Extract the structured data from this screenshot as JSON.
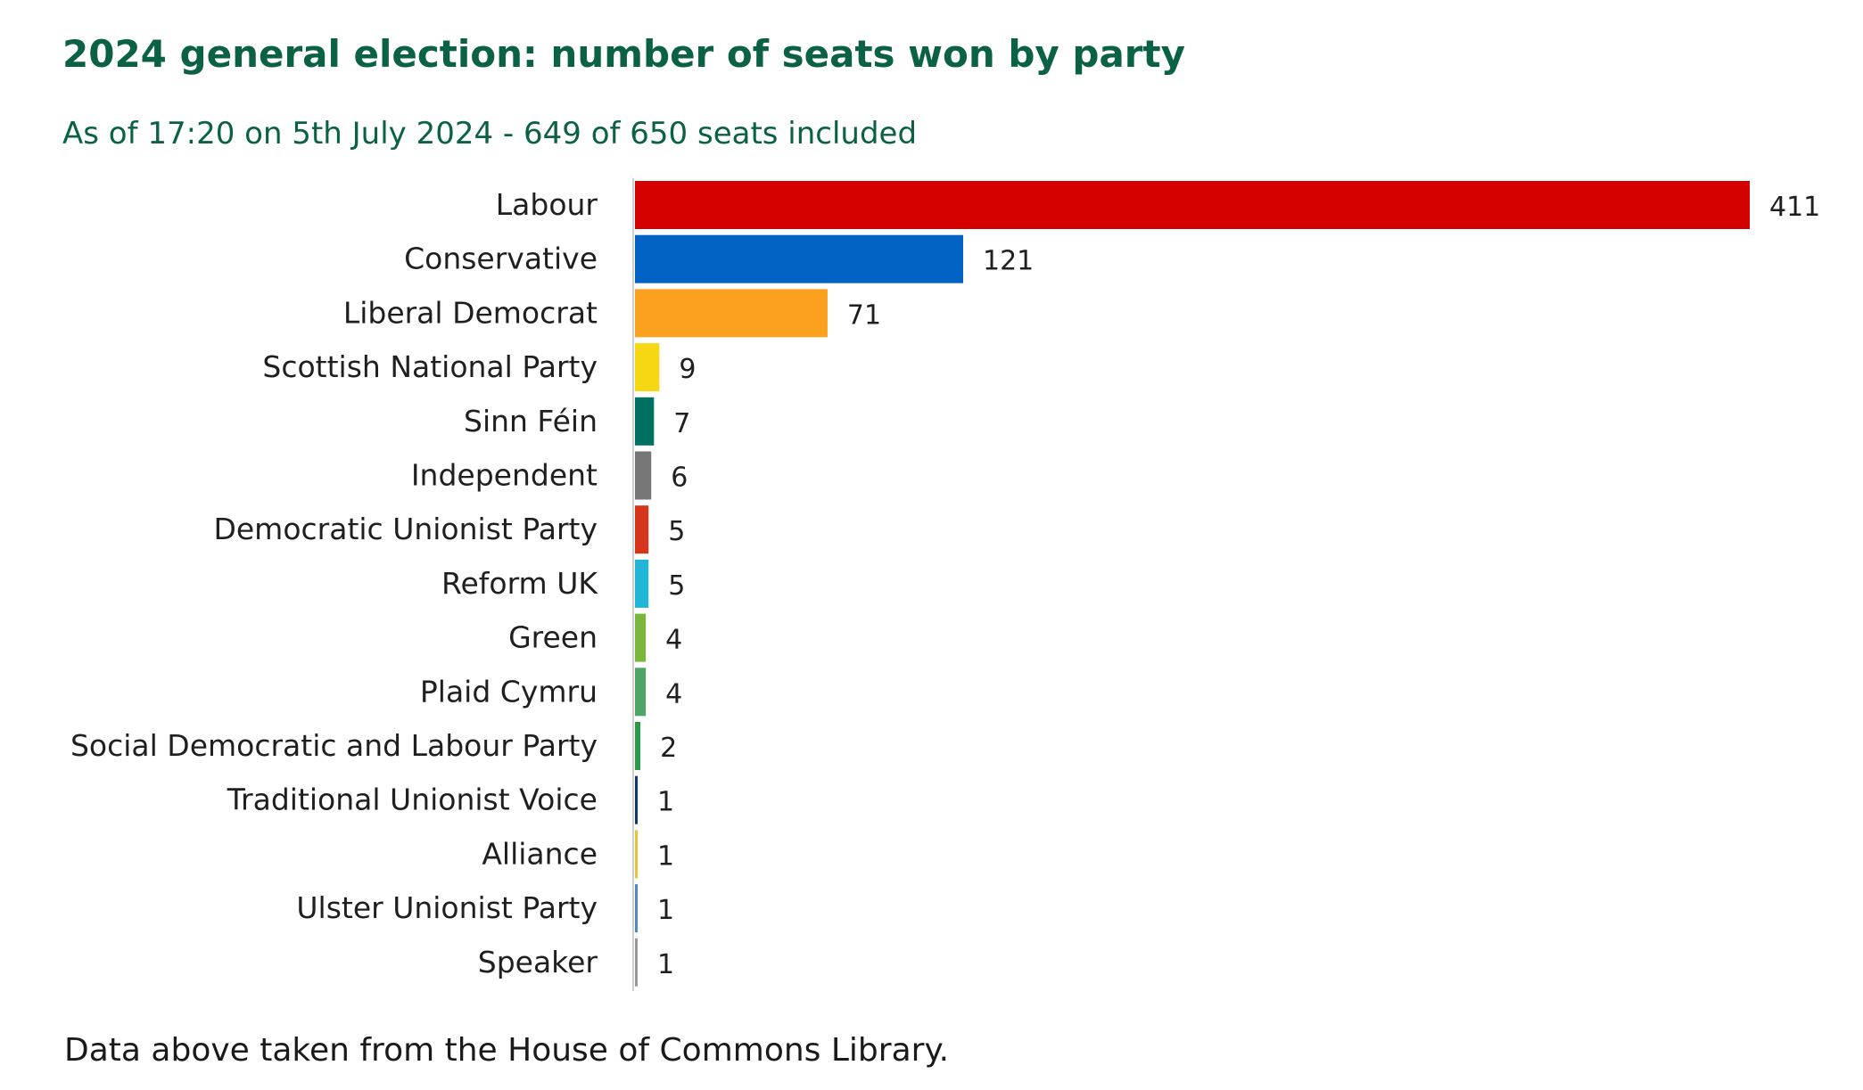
{
  "chart_data": {
    "type": "bar",
    "orientation": "horizontal",
    "title": "2024 general election: number of seats won by party",
    "subtitle": "As of 17:20 on 5th July 2024 - 649 of 650 seats included",
    "categories": [
      "Labour",
      "Conservative",
      "Liberal Democrat",
      "Scottish National Party",
      "Sinn Féin",
      "Independent",
      "Democratic Unionist Party",
      "Reform UK",
      "Green",
      "Plaid Cymru",
      "Social Democratic and Labour Party",
      "Traditional Unionist Voice",
      "Alliance",
      "Ulster Unionist Party",
      "Speaker"
    ],
    "values": [
      411,
      121,
      71,
      9,
      7,
      6,
      5,
      5,
      4,
      4,
      2,
      1,
      1,
      1,
      1
    ],
    "value_labels": [
      "411",
      "121",
      "71",
      "9",
      "7",
      "6",
      "5",
      "5",
      "4",
      "4",
      "2",
      "1",
      "1",
      "1",
      "1"
    ],
    "colors": [
      "#d50000",
      "#0063c4",
      "#fba11f",
      "#f5d813",
      "#007160",
      "#777777",
      "#d5361b",
      "#21b6d7",
      "#7ab63d",
      "#4fa46a",
      "#2d9a4a",
      "#0c3a6e",
      "#e8c23a",
      "#4f86c6",
      "#999999"
    ],
    "xlim": [
      0,
      411
    ],
    "grid": false,
    "legend": "none"
  },
  "caption": "Data above taken from the House of Commons Library."
}
